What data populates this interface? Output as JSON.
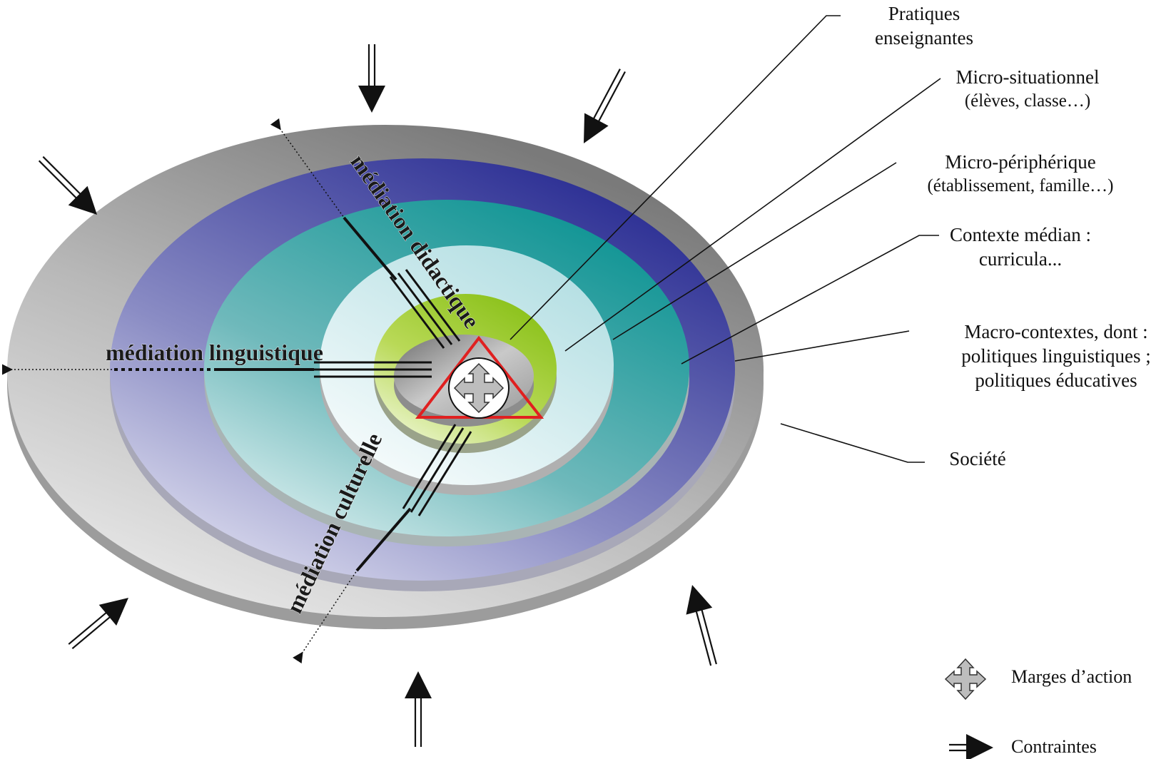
{
  "rings": {
    "pratiques": {
      "line1": "Pratiques",
      "line2": "enseignantes"
    },
    "micro_situationnel": {
      "line1": "Micro-situationnel",
      "line2": "(élèves, classe…)"
    },
    "micro_peripherique": {
      "line1": "Micro-périphérique",
      "line2": "(établissement, famille…)"
    },
    "contexte_median": {
      "line1": "Contexte médian :",
      "line2": "curricula..."
    },
    "macro_contextes": {
      "line1": "Macro-contextes, dont :",
      "line2": "politiques linguistiques ;",
      "line3": "politiques éducatives"
    },
    "societe": {
      "line1": "Société"
    }
  },
  "mediations": {
    "didactique": "médiation didactique",
    "linguistique": "médiation linguistique",
    "culturelle": "médiation culturelle"
  },
  "legend": {
    "marges": "Marges d’action",
    "contraintes": "Contraintes"
  },
  "colors": {
    "societe": "#8c8c8c",
    "macro": "#32359a",
    "median": "#169a9a",
    "peripherique": "#bfe3e6",
    "situationnel": "#8dc21f",
    "triangle": "#e02020"
  }
}
